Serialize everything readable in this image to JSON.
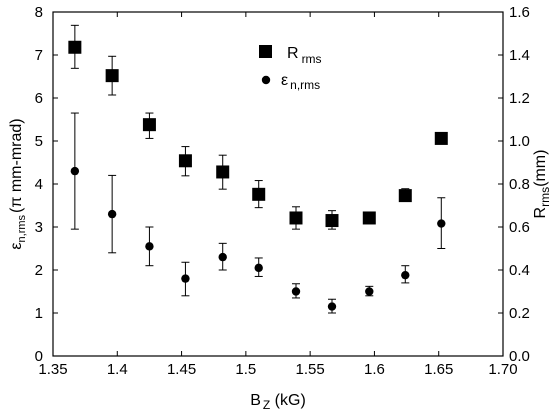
{
  "chart_data": {
    "type": "scatter",
    "xlabel_main": "B",
    "xlabel_sub": "Z",
    "xlabel_unit": " (kG)",
    "ylabel_left_main": "ε",
    "ylabel_left_sub": "n,rms",
    "ylabel_left_unit": "(π mm-mrad)",
    "ylabel_right_main": "R",
    "ylabel_right_sub": "rms",
    "ylabel_right_unit": "(mm)",
    "xlim": [
      1.35,
      1.7
    ],
    "ylim_left": [
      0,
      8
    ],
    "ylim_right": [
      0.0,
      1.6
    ],
    "x_ticks": [
      "1.35",
      "1.4",
      "1.45",
      "1.5",
      "1.55",
      "1.6",
      "1.65",
      "1.70"
    ],
    "x_tick_values": [
      1.35,
      1.4,
      1.45,
      1.5,
      1.55,
      1.6,
      1.65,
      1.7
    ],
    "y_left_ticks": [
      "0",
      "1",
      "2",
      "3",
      "4",
      "5",
      "6",
      "7",
      "8"
    ],
    "y_left_tick_values": [
      0,
      1,
      2,
      3,
      4,
      5,
      6,
      7,
      8
    ],
    "y_right_ticks": [
      "0.0",
      "0.2",
      "0.4",
      "0.6",
      "0.8",
      "1.0",
      "1.2",
      "1.4",
      "1.6"
    ],
    "y_right_tick_values": [
      0.0,
      0.2,
      0.4,
      0.6,
      0.8,
      1.0,
      1.2,
      1.4,
      1.6
    ],
    "legend": [
      {
        "main": "R",
        "sub": "rms",
        "marker": "square"
      },
      {
        "main": "ε",
        "sub": "n,rms",
        "marker": "circle"
      }
    ],
    "legend_position": "top-center",
    "series": [
      {
        "marker": "square",
        "axis": "right",
        "x": [
          1.367,
          1.396,
          1.425,
          1.453,
          1.482,
          1.51,
          1.539,
          1.567,
          1.596,
          1.624,
          1.652
        ],
        "y": [
          1.436,
          1.304,
          1.076,
          0.908,
          0.856,
          0.752,
          0.642,
          0.63,
          0.642,
          0.746,
          1.012
        ],
        "err_low": [
          1.338,
          1.214,
          1.012,
          0.838,
          0.776,
          0.69,
          0.59,
          0.59,
          0.64,
          0.73,
          1.0
        ],
        "err_high": [
          1.538,
          1.394,
          1.13,
          0.974,
          0.934,
          0.816,
          0.694,
          0.676,
          0.644,
          0.778,
          1.024
        ]
      },
      {
        "marker": "circle",
        "axis": "left",
        "x": [
          1.367,
          1.396,
          1.425,
          1.453,
          1.482,
          1.51,
          1.539,
          1.567,
          1.596,
          1.624,
          1.652
        ],
        "y": [
          4.3,
          3.3,
          2.55,
          1.8,
          2.3,
          2.05,
          1.5,
          1.15,
          1.5,
          1.88,
          3.08
        ],
        "err_low": [
          2.95,
          2.4,
          2.1,
          1.4,
          2.0,
          1.85,
          1.35,
          1.0,
          1.4,
          1.7,
          2.5
        ],
        "err_high": [
          5.65,
          4.2,
          3.0,
          2.18,
          2.62,
          2.28,
          1.68,
          1.32,
          1.62,
          2.1,
          3.68
        ]
      }
    ]
  }
}
